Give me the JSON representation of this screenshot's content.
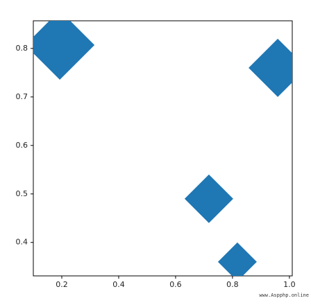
{
  "chart_data": {
    "type": "scatter",
    "marker": "diamond",
    "color": "#1f77b4",
    "x": [
      0.193,
      0.959,
      0.717,
      0.817
    ],
    "values": [
      0.807,
      0.76,
      0.49,
      0.36
    ],
    "sizes": [
      2500,
      1764,
      1225,
      784
    ],
    "xlim": [
      0.1,
      1.01
    ],
    "ylim": [
      0.331,
      0.857
    ],
    "xticks": [
      0.2,
      0.4,
      0.6,
      0.8,
      {
        "value": 1.0,
        "label": "1.0"
      }
    ],
    "yticks": [
      0.4,
      0.5,
      0.6,
      0.7,
      0.8
    ],
    "watermark": "www.Aspphp.online"
  }
}
